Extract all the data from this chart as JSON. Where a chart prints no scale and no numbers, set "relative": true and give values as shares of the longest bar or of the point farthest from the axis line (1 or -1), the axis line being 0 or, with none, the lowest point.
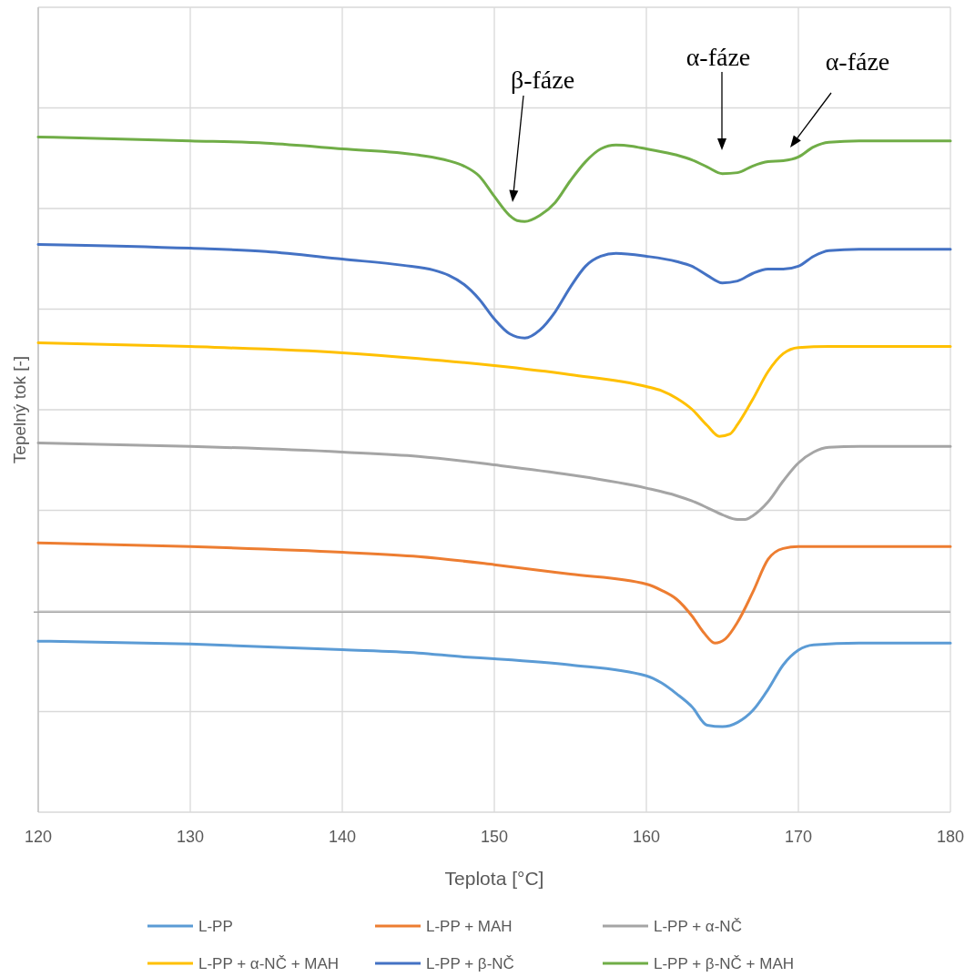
{
  "chart_data": {
    "type": "line",
    "relative": true,
    "xlabel": "Teplota [°C]",
    "ylabel": "Tepelný tok [-]",
    "xlim": [
      120,
      180
    ],
    "xticks": [
      120,
      130,
      140,
      150,
      160,
      170,
      180
    ],
    "grid": true,
    "legend": "bottom",
    "marker": "none",
    "line_style": "solid",
    "annotations": [
      "β-fáze",
      "α-fáze",
      "α-fáze"
    ],
    "series": [
      {
        "name": "L-PP",
        "color": "#5b9bd5",
        "x": [
          120,
          130,
          140,
          145,
          148,
          150,
          155,
          160,
          161,
          162,
          163,
          164,
          165,
          166,
          167,
          168,
          169,
          170,
          171,
          174,
          180
        ],
        "values": [
          -0.061,
          -0.067,
          -0.079,
          -0.086,
          -0.094,
          -0.098,
          -0.111,
          -0.134,
          -0.149,
          -0.172,
          -0.199,
          -0.238,
          -0.241,
          -0.232,
          -0.207,
          -0.163,
          -0.111,
          -0.08,
          -0.069,
          -0.065,
          -0.065
        ]
      },
      {
        "name": "L-PP + MAH",
        "color": "#ed7d31",
        "x": [
          120,
          130,
          140,
          145,
          150,
          155,
          160,
          161,
          162,
          163,
          163.8,
          164.5,
          165.2,
          166,
          167,
          168,
          169,
          170,
          180
        ],
        "values": [
          0.146,
          0.138,
          0.126,
          0.117,
          0.1,
          0.08,
          0.059,
          0.046,
          0.027,
          -0.008,
          -0.044,
          -0.065,
          -0.056,
          -0.021,
          0.042,
          0.111,
          0.134,
          0.138,
          0.138
        ]
      },
      {
        "name": "L-PP + α-NČ",
        "color": "#a5a5a5",
        "x": [
          120,
          130,
          140,
          145,
          150,
          155,
          160,
          162,
          163,
          164,
          165,
          166,
          166.5,
          167,
          168,
          169,
          170,
          171,
          172,
          174,
          180
        ],
        "values": [
          0.356,
          0.349,
          0.337,
          0.328,
          0.31,
          0.289,
          0.261,
          0.245,
          0.234,
          0.22,
          0.205,
          0.195,
          0.195,
          0.203,
          0.232,
          0.276,
          0.314,
          0.337,
          0.347,
          0.349,
          0.349
        ]
      },
      {
        "name": "L-PP + α-NČ + MAH",
        "color": "#ffc000",
        "x": [
          120,
          130,
          140,
          145,
          150,
          155,
          160,
          161,
          162,
          163,
          164,
          164.8,
          165.5,
          166,
          167,
          168,
          169,
          170,
          172,
          180
        ],
        "values": [
          0.567,
          0.559,
          0.546,
          0.534,
          0.519,
          0.5,
          0.475,
          0.466,
          0.45,
          0.427,
          0.393,
          0.37,
          0.375,
          0.395,
          0.448,
          0.506,
          0.544,
          0.557,
          0.559,
          0.559
        ]
      },
      {
        "name": "L-PP + β-NČ",
        "color": "#4472c4",
        "x": [
          120,
          130,
          135,
          140,
          144,
          146,
          147,
          148,
          149,
          150,
          151,
          152,
          153,
          154,
          155,
          156,
          157,
          158,
          160,
          162,
          163,
          164,
          165,
          166,
          167,
          168,
          169,
          170,
          171,
          172,
          174,
          180
        ],
        "values": [
          0.774,
          0.766,
          0.759,
          0.743,
          0.73,
          0.72,
          0.709,
          0.69,
          0.659,
          0.617,
          0.586,
          0.577,
          0.594,
          0.632,
          0.684,
          0.728,
          0.749,
          0.755,
          0.749,
          0.738,
          0.728,
          0.709,
          0.693,
          0.697,
          0.713,
          0.722,
          0.722,
          0.728,
          0.749,
          0.761,
          0.764,
          0.764
        ]
      },
      {
        "name": "L-PP + β-NČ + MAH",
        "color": "#70ad47",
        "x": [
          120,
          130,
          135,
          140,
          145,
          147,
          148,
          149,
          150,
          151,
          151.5,
          152,
          153,
          154,
          155,
          156,
          157,
          158,
          159,
          160,
          162,
          163,
          164,
          165,
          166,
          167,
          168,
          169,
          170,
          171,
          172,
          174,
          180
        ],
        "values": [
          1,
          0.992,
          0.987,
          0.975,
          0.962,
          0.95,
          0.939,
          0.918,
          0.875,
          0.835,
          0.824,
          0.822,
          0.835,
          0.862,
          0.908,
          0.948,
          0.975,
          0.983,
          0.981,
          0.975,
          0.962,
          0.952,
          0.937,
          0.923,
          0.925,
          0.939,
          0.948,
          0.95,
          0.958,
          0.979,
          0.989,
          0.992,
          0.992
        ]
      }
    ]
  }
}
